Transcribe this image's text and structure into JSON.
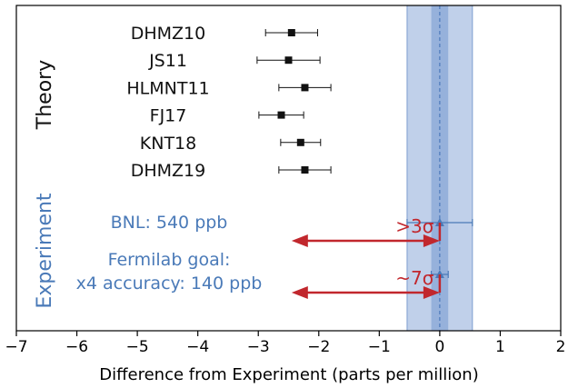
{
  "chart_data": {
    "type": "scatter",
    "xlabel": "Difference from Experiment (parts per million)",
    "xlim": [
      -7,
      2
    ],
    "xticks": [
      "−7",
      "−6",
      "−5",
      "−4",
      "−3",
      "−2",
      "−1",
      "0",
      "1",
      "2"
    ],
    "theory_label": "Theory",
    "experiment_label": "Experiment",
    "theory_points": [
      {
        "name": "DHMZ10",
        "value": -2.45,
        "err": 0.43
      },
      {
        "name": "JS11",
        "value": -2.5,
        "err": 0.52
      },
      {
        "name": "HLMNT11",
        "value": -2.23,
        "err": 0.43
      },
      {
        "name": "FJ17",
        "value": -2.62,
        "err": 0.37
      },
      {
        "name": "KNT18",
        "value": -2.3,
        "err": 0.33
      },
      {
        "name": "DHMZ19",
        "value": -2.23,
        "err": 0.43
      }
    ],
    "experiment_points": [
      {
        "name": "BNL: 540 ppb",
        "value": 0.0,
        "err": 0.54,
        "annotation": ">3σ",
        "arrow_from": -2.45
      },
      {
        "name": "Fermilab goal:",
        "name2": "x4 accuracy: 140 ppb",
        "value": 0.0,
        "err": 0.14,
        "annotation": "~7σ",
        "arrow_from": -2.45
      }
    ],
    "bands": [
      {
        "name": "outer",
        "lo": -0.54,
        "hi": 0.54,
        "color": "#b5c8e6"
      },
      {
        "name": "inner",
        "lo": -0.14,
        "hi": 0.14,
        "color": "#8eabd8"
      }
    ],
    "colors": {
      "theory_marker": "#111111",
      "experiment": "#4a7ab8",
      "arrow": "#c1272d",
      "theory_text": "#111111",
      "experiment_text": "#4a7ab8"
    }
  }
}
